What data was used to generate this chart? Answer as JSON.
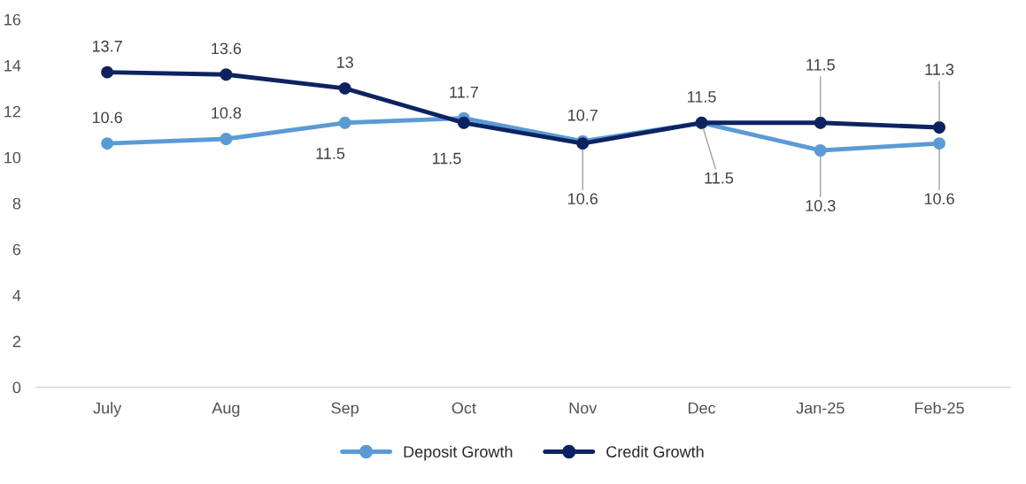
{
  "chart_data": {
    "type": "line",
    "categories": [
      "July",
      "Aug",
      "Sep",
      "Oct",
      "Nov",
      "Dec",
      "Jan-25",
      "Feb-25"
    ],
    "series": [
      {
        "name": "Deposit Growth",
        "color": "#5b9bd5",
        "values": [
          10.6,
          10.8,
          11.5,
          11.7,
          10.7,
          11.5,
          10.3,
          10.6
        ]
      },
      {
        "name": "Credit Growth",
        "color": "#0d2361",
        "values": [
          13.7,
          13.6,
          13,
          11.5,
          10.6,
          11.5,
          11.5,
          11.3
        ]
      }
    ],
    "ylim": [
      0,
      16
    ],
    "yticks": [
      0,
      2,
      4,
      6,
      8,
      10,
      12,
      14,
      16
    ],
    "grid": false,
    "legend": "bottom",
    "marker": "circle",
    "line_style": "solid",
    "data_labels": true
  }
}
